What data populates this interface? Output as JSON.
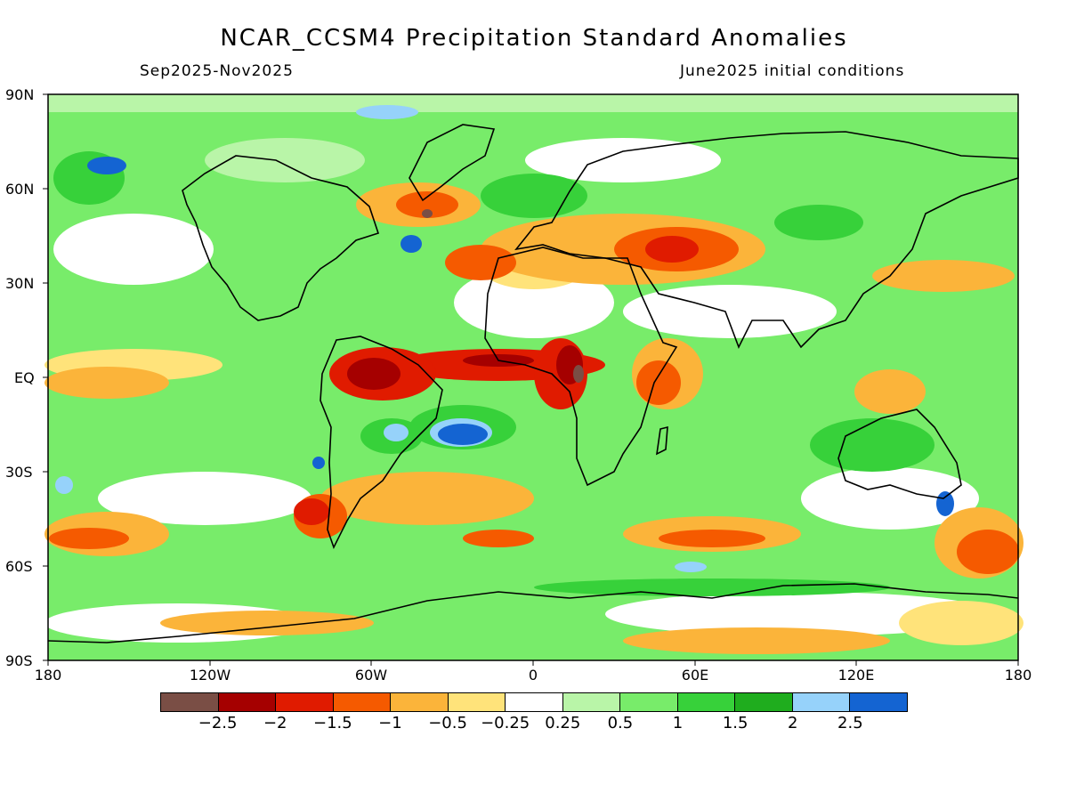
{
  "header": {
    "title": "NCAR_CCSM4 Precipitation Standard Anomalies",
    "period": "Sep2025-Nov2025",
    "init": "June2025 initial conditions"
  },
  "axes": {
    "lat_labels": [
      "90N",
      "60N",
      "30N",
      "EQ",
      "30S",
      "60S",
      "90S"
    ],
    "lon_labels": [
      "180",
      "120W",
      "60W",
      "0",
      "60E",
      "120E",
      "180"
    ]
  },
  "colorbar": {
    "colors": [
      "#7a4e45",
      "#a50000",
      "#e01b00",
      "#f55a00",
      "#fbb43a",
      "#ffe37a",
      "#ffffff",
      "#b9f5a8",
      "#78ec6a",
      "#37d13a",
      "#1fad1e",
      "#96d2fa",
      "#1464d2"
    ],
    "labels": [
      "−2.5",
      "−2",
      "−1.5",
      "−1",
      "−0.5",
      "−0.25",
      "0.25",
      "0.5",
      "1",
      "1.5",
      "2",
      "2.5"
    ]
  }
}
